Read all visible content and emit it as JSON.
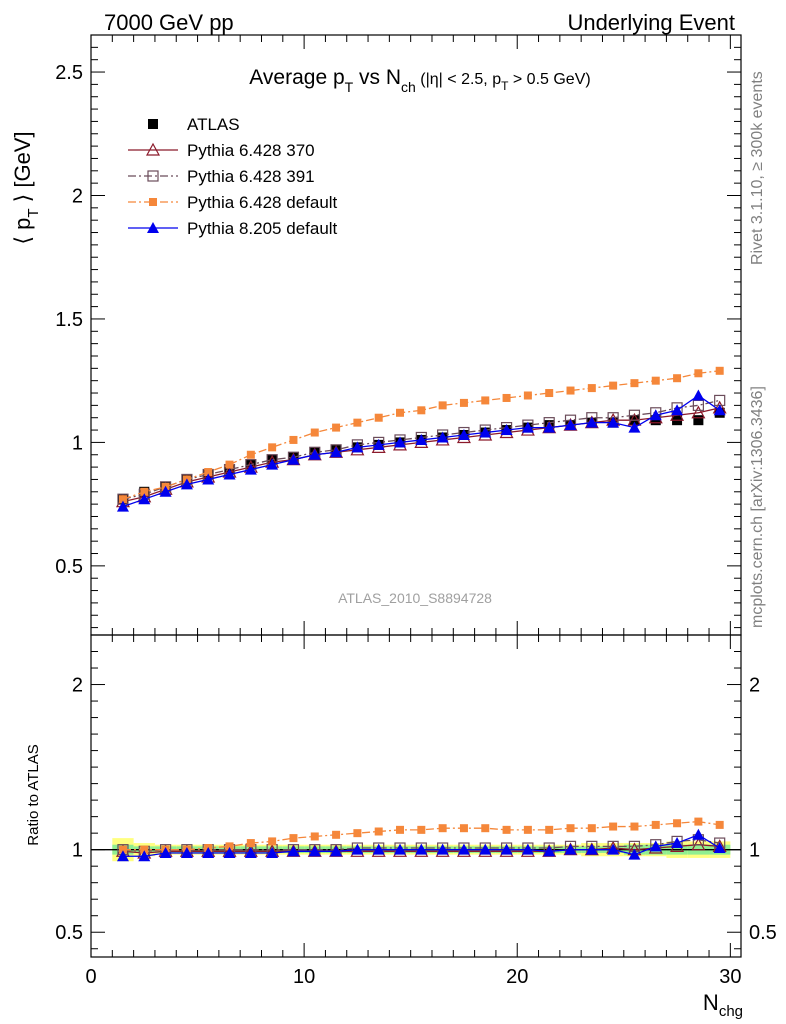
{
  "header": {
    "left": "7000 GeV pp",
    "right": "Underlying Event"
  },
  "side_labels": {
    "rivet": "Rivet 3.1.10, ≥ 300k events",
    "mcplots": "mcplots.cern.ch [arXiv:1306.3436]"
  },
  "watermark": "ATLAS_2010_S8894728",
  "chart_data": [
    {
      "type": "line",
      "title": "Average p_T vs N_ch (|η| < 2.5, p_T > 0.5 GeV)",
      "title_parts": {
        "main": "Average p",
        "sub1": "T",
        "mid": " vs N",
        "sub2": "ch",
        "cuts": " (|η| < 2.5, p",
        "sub3": "T",
        "cuts_end": " > 0.5 GeV)"
      },
      "ylabel": "⟨ p_T ⟩ [GeV]",
      "ylabel_parts": {
        "open": "⟨ p",
        "sub": "T",
        "close": " ⟩ [GeV]"
      },
      "xlim": [
        0,
        30.5
      ],
      "ylim": [
        0.22,
        2.65
      ],
      "yticks": [
        0.5,
        1,
        1.5,
        2,
        2.5
      ],
      "ytick_labels": [
        "0.5",
        "1",
        "1.5",
        "2",
        "2.5"
      ],
      "x": [
        1.5,
        2.5,
        3.5,
        4.5,
        5.5,
        6.5,
        7.5,
        8.5,
        9.5,
        10.5,
        11.5,
        12.5,
        13.5,
        14.5,
        15.5,
        16.5,
        17.5,
        18.5,
        19.5,
        20.5,
        21.5,
        22.5,
        23.5,
        24.5,
        25.5,
        26.5,
        27.5,
        28.5,
        29.5
      ],
      "series": [
        {
          "name": "ATLAS",
          "color": "#000000",
          "marker": "square-filled",
          "dash": "none",
          "values": [
            0.77,
            0.8,
            0.82,
            0.85,
            0.87,
            0.89,
            0.91,
            0.93,
            0.94,
            0.96,
            0.97,
            0.98,
            0.99,
            1.0,
            1.01,
            1.02,
            1.03,
            1.04,
            1.05,
            1.06,
            1.07,
            1.07,
            1.08,
            1.08,
            1.09,
            1.09,
            1.09,
            1.09,
            1.12
          ]
        },
        {
          "name": "Pythia 6.428 370",
          "color": "#8b1a2b",
          "marker": "triangle-open",
          "dash": "solid",
          "values": [
            0.76,
            0.78,
            0.81,
            0.84,
            0.86,
            0.88,
            0.9,
            0.92,
            0.93,
            0.95,
            0.96,
            0.97,
            0.98,
            0.99,
            1.0,
            1.01,
            1.02,
            1.03,
            1.04,
            1.05,
            1.06,
            1.07,
            1.08,
            1.09,
            1.09,
            1.1,
            1.11,
            1.12,
            1.14
          ]
        },
        {
          "name": "Pythia 6.428 391",
          "color": "#6b4c5a",
          "marker": "square-open",
          "dash": "dashdot",
          "values": [
            0.77,
            0.79,
            0.82,
            0.85,
            0.87,
            0.89,
            0.91,
            0.93,
            0.94,
            0.96,
            0.97,
            0.99,
            1.0,
            1.01,
            1.02,
            1.03,
            1.04,
            1.05,
            1.06,
            1.07,
            1.08,
            1.09,
            1.1,
            1.1,
            1.11,
            1.12,
            1.14,
            1.15,
            1.17
          ]
        },
        {
          "name": "Pythia 6.428 default",
          "color": "#f5873a",
          "marker": "square-small-filled",
          "dash": "dashdot",
          "values": [
            0.77,
            0.8,
            0.82,
            0.85,
            0.88,
            0.91,
            0.95,
            0.98,
            1.01,
            1.04,
            1.06,
            1.08,
            1.1,
            1.12,
            1.13,
            1.15,
            1.16,
            1.17,
            1.18,
            1.19,
            1.2,
            1.21,
            1.22,
            1.23,
            1.24,
            1.25,
            1.26,
            1.28,
            1.29
          ]
        },
        {
          "name": "Pythia 8.205 default",
          "color": "#0000ee",
          "marker": "triangle-filled",
          "dash": "solid",
          "values": [
            0.74,
            0.77,
            0.8,
            0.83,
            0.85,
            0.87,
            0.89,
            0.91,
            0.93,
            0.95,
            0.96,
            0.98,
            0.99,
            1.0,
            1.01,
            1.02,
            1.03,
            1.04,
            1.05,
            1.06,
            1.06,
            1.07,
            1.08,
            1.08,
            1.06,
            1.11,
            1.13,
            1.19,
            1.13
          ]
        }
      ],
      "legend_position": "top-left"
    },
    {
      "type": "line",
      "ylabel": "Ratio to ATLAS",
      "xlabel": "N_chg",
      "xlabel_parts": {
        "main": "N",
        "sub": "chg"
      },
      "xlim": [
        0,
        30.5
      ],
      "ylim": [
        0.35,
        2.3
      ],
      "yticks": [
        0.5,
        1,
        2
      ],
      "ytick_labels": [
        "0.5",
        "1",
        "2"
      ],
      "xticks": [
        0,
        10,
        20,
        30
      ],
      "xtick_labels": [
        "0",
        "10",
        "20",
        "30"
      ],
      "x": [
        1.5,
        2.5,
        3.5,
        4.5,
        5.5,
        6.5,
        7.5,
        8.5,
        9.5,
        10.5,
        11.5,
        12.5,
        13.5,
        14.5,
        15.5,
        16.5,
        17.5,
        18.5,
        19.5,
        20.5,
        21.5,
        22.5,
        23.5,
        24.5,
        25.5,
        26.5,
        27.5,
        28.5,
        29.5
      ],
      "band_colors": {
        "outer": "#ffff80",
        "inner": "#90ee90"
      },
      "band_halfwidth_outer": [
        0.07,
        0.04,
        0.03,
        0.03,
        0.03,
        0.03,
        0.03,
        0.03,
        0.03,
        0.03,
        0.03,
        0.03,
        0.03,
        0.03,
        0.03,
        0.03,
        0.03,
        0.03,
        0.03,
        0.03,
        0.03,
        0.03,
        0.04,
        0.04,
        0.04,
        0.04,
        0.05,
        0.05,
        0.05
      ],
      "band_halfwidth_inner": [
        0.03,
        0.02,
        0.02,
        0.02,
        0.02,
        0.02,
        0.02,
        0.02,
        0.02,
        0.02,
        0.02,
        0.02,
        0.02,
        0.02,
        0.02,
        0.02,
        0.02,
        0.02,
        0.02,
        0.02,
        0.02,
        0.02,
        0.02,
        0.02,
        0.03,
        0.03,
        0.03,
        0.03,
        0.03
      ],
      "series": [
        {
          "name": "Pythia 6.428 370",
          "color": "#8b1a2b",
          "marker": "triangle-open",
          "dash": "solid",
          "values": [
            0.99,
            0.98,
            0.99,
            0.99,
            0.99,
            0.99,
            0.99,
            0.99,
            0.99,
            0.99,
            0.99,
            0.99,
            0.99,
            0.99,
            0.99,
            0.99,
            0.99,
            0.99,
            0.99,
            0.99,
            0.99,
            1.0,
            1.0,
            1.01,
            1.0,
            1.01,
            1.02,
            1.03,
            1.02
          ]
        },
        {
          "name": "Pythia 6.428 391",
          "color": "#6b4c5a",
          "marker": "square-open",
          "dash": "dashdot",
          "values": [
            1.0,
            0.99,
            1.0,
            1.0,
            1.0,
            1.0,
            1.0,
            1.0,
            1.0,
            1.0,
            1.0,
            1.01,
            1.01,
            1.01,
            1.01,
            1.01,
            1.01,
            1.01,
            1.01,
            1.01,
            1.01,
            1.02,
            1.02,
            1.02,
            1.02,
            1.03,
            1.05,
            1.06,
            1.04
          ]
        },
        {
          "name": "Pythia 6.428 default",
          "color": "#f5873a",
          "marker": "square-small-filled",
          "dash": "dashdot",
          "values": [
            1.0,
            1.0,
            1.0,
            1.0,
            1.01,
            1.02,
            1.04,
            1.05,
            1.07,
            1.08,
            1.09,
            1.1,
            1.11,
            1.12,
            1.12,
            1.13,
            1.13,
            1.13,
            1.12,
            1.12,
            1.12,
            1.13,
            1.13,
            1.14,
            1.14,
            1.15,
            1.16,
            1.17,
            1.15
          ]
        },
        {
          "name": "Pythia 8.205 default",
          "color": "#0000ee",
          "marker": "triangle-filled",
          "dash": "solid",
          "values": [
            0.96,
            0.96,
            0.98,
            0.98,
            0.98,
            0.98,
            0.98,
            0.98,
            0.99,
            0.99,
            0.99,
            1.0,
            1.0,
            1.0,
            1.0,
            1.0,
            1.0,
            1.0,
            1.0,
            1.0,
            0.99,
            1.0,
            1.0,
            1.0,
            0.97,
            1.02,
            1.04,
            1.09,
            1.01
          ]
        }
      ]
    }
  ]
}
